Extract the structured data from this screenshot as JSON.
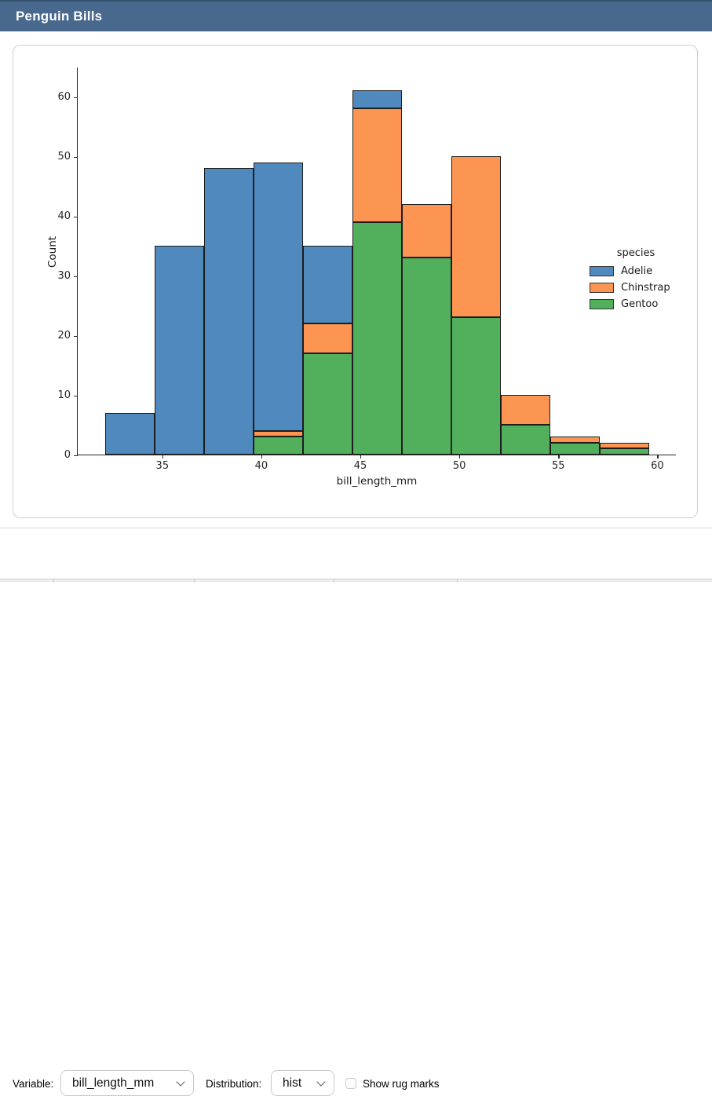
{
  "header": {
    "title": "Penguin Bills"
  },
  "controls": {
    "variable_label": "Variable:",
    "variable_value": "bill_length_mm",
    "distribution_label": "Distribution:",
    "distribution_value": "hist",
    "rug_label": "Show rug marks",
    "rug_checked": false
  },
  "colors": {
    "header_bg": "#49688d",
    "adelie": "#5089be",
    "chinstrap": "#fc9551",
    "gentoo": "#52b05c",
    "bar_edge": "#1d1d1d"
  },
  "chart_data": {
    "type": "bar",
    "subtype": "stacked-histogram",
    "title": "",
    "xlabel": "bill_length_mm",
    "ylabel": "Count",
    "xlim": [
      30.725,
      60.975
    ],
    "ylim": [
      0,
      65
    ],
    "x_ticks": [
      35,
      40,
      45,
      50,
      55,
      60
    ],
    "y_ticks": [
      0,
      10,
      20,
      30,
      40,
      50,
      60
    ],
    "grid": false,
    "bin_edges": [
      32.1,
      34.6,
      37.1,
      39.6,
      42.1,
      44.6,
      47.1,
      49.6,
      52.1,
      54.6,
      57.1,
      59.6
    ],
    "series": [
      {
        "name": "Adelie",
        "color": "#5089be",
        "values": [
          7,
          35,
          48,
          45,
          13,
          3,
          0,
          0,
          0,
          0,
          0
        ]
      },
      {
        "name": "Chinstrap",
        "color": "#fc9551",
        "values": [
          0,
          0,
          0,
          1,
          5,
          19,
          9,
          27,
          5,
          1,
          1
        ]
      },
      {
        "name": "Gentoo",
        "color": "#52b05c",
        "values": [
          0,
          0,
          0,
          3,
          17,
          39,
          33,
          23,
          5,
          2,
          1
        ]
      }
    ],
    "stack_order_bottom_to_top": [
      "Gentoo",
      "Chinstrap",
      "Adelie"
    ],
    "bin_totals": [
      7,
      35,
      48,
      49,
      35,
      61,
      42,
      50,
      10,
      3,
      2
    ],
    "legend": {
      "title": "species",
      "position": "center-right",
      "frame": false
    }
  }
}
